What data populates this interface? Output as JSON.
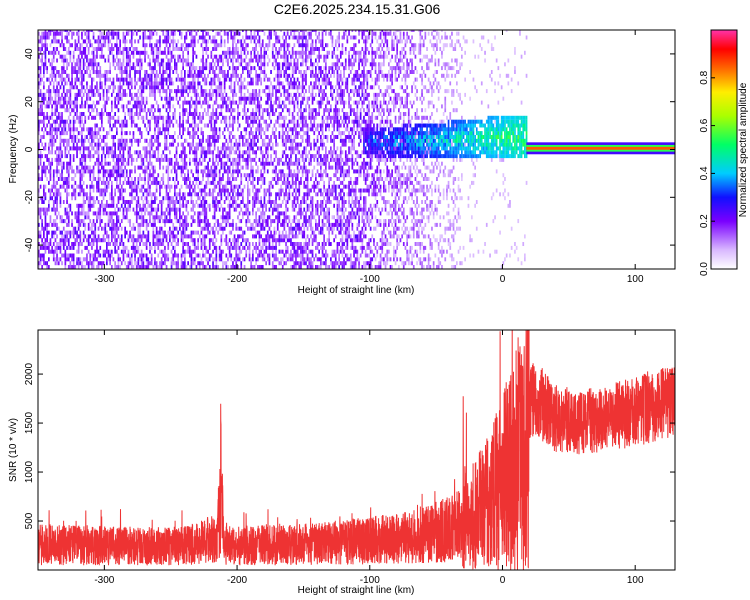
{
  "title": "C2E6.2025.234.15.31.G06",
  "colors": {
    "snr_line": "#ee3333",
    "spectro_background": "#ffffff",
    "frame": "#000000"
  },
  "chart_data": [
    {
      "type": "heatmap",
      "name": "spectrogram",
      "xlabel": "Height of straight line (km)",
      "ylabel": "Frequency (Hz)",
      "xlim": [
        -350,
        130
      ],
      "ylim": [
        -50,
        50
      ],
      "x_ticks": [
        "-300",
        "-200",
        "-100",
        "0",
        "100"
      ],
      "x_tick_values": [
        -300,
        -200,
        -100,
        0,
        100
      ],
      "y_ticks": [
        "-40",
        "-20",
        "0",
        "20",
        "40"
      ],
      "y_tick_values": [
        -40,
        -20,
        0,
        20,
        40
      ],
      "colorbar": {
        "label": "Normalized spectral amplitude",
        "range": [
          0,
          1
        ],
        "ticks": [
          "0.0",
          "0.2",
          "0.4",
          "0.6",
          "0.8"
        ],
        "tick_values": [
          0.0,
          0.2,
          0.4,
          0.6,
          0.8
        ],
        "colormap": "rainbow (white-violet-blue-cyan-green-yellow-red-magenta)"
      },
      "features": {
        "noise_region_km": [
          -350,
          -30
        ],
        "signal_band_km": [
          -105,
          18
        ],
        "signal_band_freq_hz": [
          -5,
          10
        ],
        "tone_km": [
          18,
          130
        ],
        "tone_freq_hz": 0.5,
        "tone_amplitude": 0.85
      }
    },
    {
      "type": "line",
      "name": "snr",
      "xlabel": "Height of straight line (km)",
      "ylabel": "SNR (10 * v/v)",
      "xlim": [
        -350,
        130
      ],
      "ylim": [
        0,
        2450
      ],
      "x_ticks": [
        "-300",
        "-200",
        "-100",
        "0",
        "100"
      ],
      "x_tick_values": [
        -300,
        -200,
        -100,
        0,
        100
      ],
      "y_ticks": [
        "500",
        "1000",
        "1500",
        "2000"
      ],
      "y_tick_values": [
        500,
        1000,
        1500,
        2000
      ],
      "series": [
        {
          "x": [
            -350,
            -300,
            -250,
            -215,
            -212,
            -210,
            -200,
            -150,
            -100,
            -60,
            -40,
            -25,
            -10,
            0,
            10,
            17,
            20,
            25,
            40,
            60,
            80,
            100,
            115,
            130
          ],
          "y": [
            260,
            250,
            240,
            300,
            900,
            260,
            250,
            260,
            300,
            350,
            420,
            500,
            700,
            900,
            1100,
            1200,
            1720,
            1750,
            1550,
            1500,
            1550,
            1620,
            1680,
            1720
          ]
        }
      ]
    }
  ]
}
